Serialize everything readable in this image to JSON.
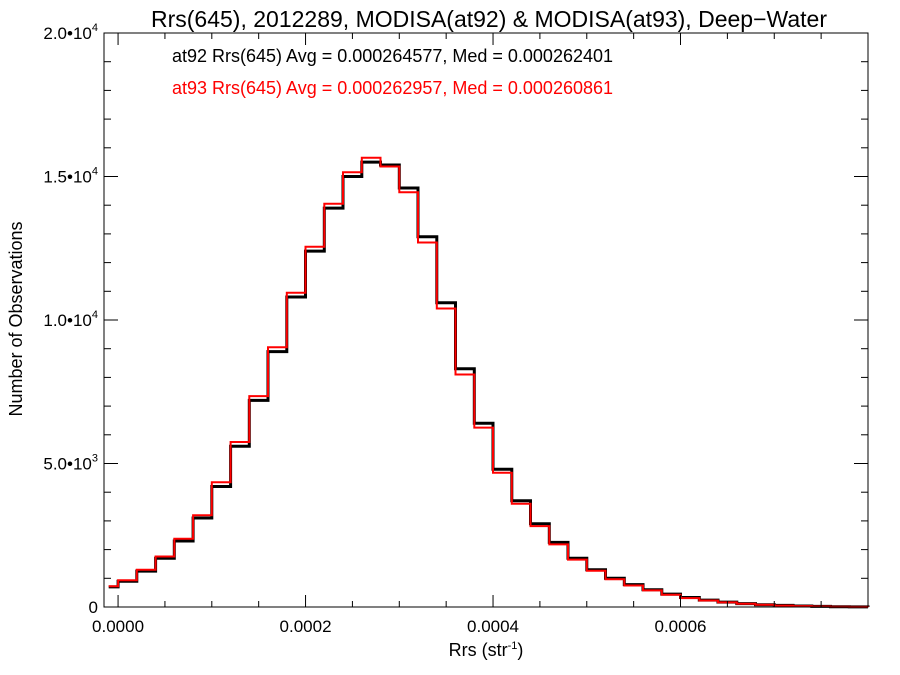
{
  "chart_data": {
    "type": "line",
    "title": "Rrs(645), 2012289, MODISA(at92) & MODISA(at93), Deep−Water",
    "xlabel": {
      "base": "Rrs (str",
      "sup": "-1",
      "end": ")"
    },
    "ylabel": "Number of Observations",
    "xlim": [
      -1.5e-05,
      0.0008
    ],
    "ylim": [
      0,
      20000
    ],
    "x_ticks": [
      {
        "value": 0.0,
        "label": "0.0000"
      },
      {
        "value": 0.0002,
        "label": "0.0002"
      },
      {
        "value": 0.0004,
        "label": "0.0004"
      },
      {
        "value": 0.0006,
        "label": "0.0006"
      }
    ],
    "y_ticks": [
      {
        "value": 0,
        "mantissa": "0",
        "exp": ""
      },
      {
        "value": 5000,
        "mantissa": "5.0•10",
        "exp": "3"
      },
      {
        "value": 10000,
        "mantissa": "1.0•10",
        "exp": "4"
      },
      {
        "value": 15000,
        "mantissa": "1.5•10",
        "exp": "4"
      },
      {
        "value": 20000,
        "mantissa": "2.0•10",
        "exp": "4"
      }
    ],
    "grid": false,
    "legend_placement": "top-left",
    "x": [
      -1e-05,
      0.0,
      2e-05,
      4e-05,
      6e-05,
      8e-05,
      0.0001,
      0.00012,
      0.00014,
      0.00016,
      0.00018,
      0.0002,
      0.00022,
      0.00024,
      0.00026,
      0.00028,
      0.0003,
      0.00032,
      0.00034,
      0.00036,
      0.00038,
      0.0004,
      0.00042,
      0.00044,
      0.00046,
      0.00048,
      0.0005,
      0.00052,
      0.00054,
      0.00056,
      0.00058,
      0.0006,
      0.00062,
      0.00064,
      0.00066,
      0.00068,
      0.0007,
      0.00072,
      0.00074,
      0.00076,
      0.00078,
      0.0008
    ],
    "series": [
      {
        "name": "at92",
        "color": "#000000",
        "legend": "at92 Rrs(645) Avg = 0.000264577, Med = 0.000262401",
        "values": [
          700,
          900,
          1250,
          1700,
          2300,
          3100,
          4200,
          5600,
          7200,
          8900,
          10800,
          12400,
          13900,
          15000,
          15500,
          15400,
          14600,
          12900,
          10600,
          8300,
          6400,
          4800,
          3700,
          2900,
          2250,
          1700,
          1300,
          1000,
          780,
          600,
          450,
          330,
          240,
          170,
          120,
          80,
          55,
          35,
          20,
          10,
          5,
          0
        ]
      },
      {
        "name": "at93",
        "color": "#ff0000",
        "legend": "at93 Rrs(645) Avg = 0.000262957, Med = 0.000260861",
        "values": [
          720,
          930,
          1300,
          1760,
          2380,
          3200,
          4350,
          5750,
          7350,
          9050,
          10950,
          12550,
          14050,
          15150,
          15650,
          15350,
          14450,
          12700,
          10400,
          8100,
          6250,
          4680,
          3600,
          2820,
          2180,
          1650,
          1260,
          970,
          750,
          580,
          430,
          310,
          225,
          160,
          110,
          75,
          50,
          32,
          18,
          9,
          4,
          0
        ]
      }
    ]
  }
}
